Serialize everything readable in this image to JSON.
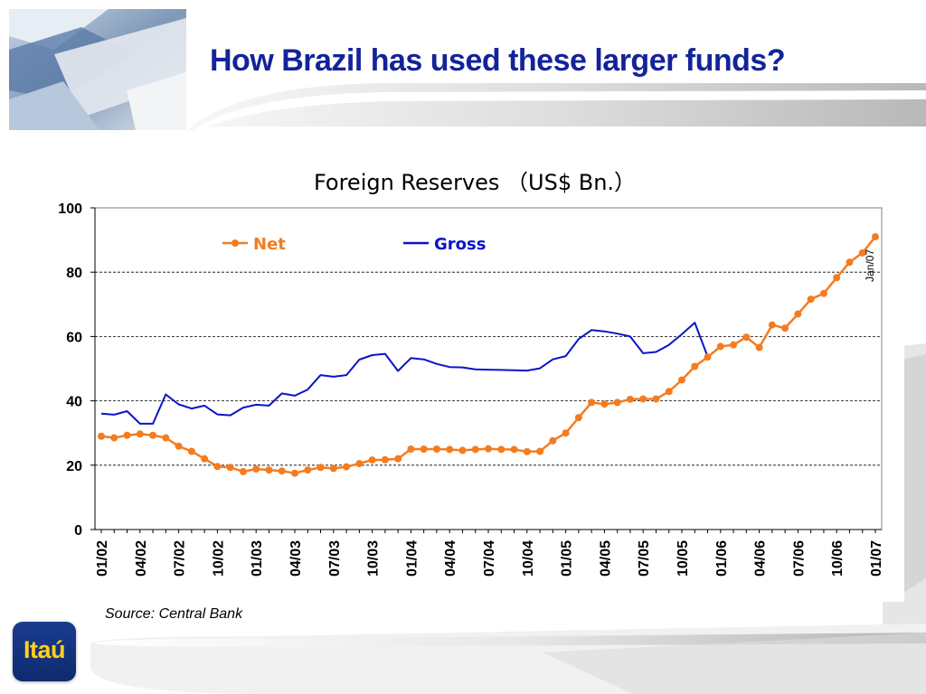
{
  "slide": {
    "title": "How Brazil has used these larger funds?",
    "source": "Source: Central Bank",
    "logo_text": "Itaú"
  },
  "colors": {
    "title": "#13239a",
    "net": "#f47c20",
    "gross": "#0a14c8",
    "grid": "#000000"
  },
  "chart_data": {
    "type": "line",
    "title": "Foreign Reserves （US$ Bn.）",
    "xlabel": "",
    "ylabel": "",
    "ylim": [
      0,
      100
    ],
    "yticks": [
      0,
      20,
      40,
      60,
      80,
      100
    ],
    "grid": "horizontal dashed at 20, 60, 80",
    "legend_position": "top inside",
    "x_start": "2002-01",
    "x_step": "month",
    "x_tick_labels": [
      "01/02",
      "04/02",
      "07/02",
      "10/02",
      "01/03",
      "04/03",
      "07/03",
      "10/03",
      "01/04",
      "04/04",
      "07/04",
      "10/04",
      "01/05",
      "04/05",
      "07/05",
      "10/05",
      "01/06",
      "04/06",
      "07/06",
      "10/06",
      "01/07"
    ],
    "annotation": "Jan/07",
    "series": [
      {
        "name": "Net",
        "marker": "circle",
        "x": [
          "2002-01",
          "2002-02",
          "2002-03",
          "2002-04",
          "2002-05",
          "2002-06",
          "2002-07",
          "2002-08",
          "2002-09",
          "2002-10",
          "2002-11",
          "2002-12",
          "2003-01",
          "2003-02",
          "2003-03",
          "2003-04",
          "2003-05",
          "2003-06",
          "2003-07",
          "2003-08",
          "2003-09",
          "2003-10",
          "2003-11",
          "2003-12",
          "2004-01",
          "2004-02",
          "2004-03",
          "2004-04",
          "2004-05",
          "2004-06",
          "2004-07",
          "2004-08",
          "2004-09",
          "2004-10",
          "2004-11",
          "2004-12",
          "2005-01",
          "2005-02",
          "2005-03",
          "2005-04",
          "2005-05",
          "2005-06",
          "2005-07",
          "2005-08",
          "2005-09",
          "2005-10",
          "2005-11",
          "2005-12",
          "2006-01",
          "2006-02",
          "2006-03",
          "2006-04",
          "2006-05",
          "2006-06",
          "2006-07",
          "2006-08",
          "2006-09",
          "2006-10",
          "2006-11",
          "2006-12",
          "2007-01"
        ],
        "values": [
          29,
          28.5,
          29.3,
          29.7,
          29.3,
          28.5,
          25.9,
          24.3,
          22,
          19.6,
          19.3,
          18,
          18.8,
          18.5,
          18.2,
          17.5,
          18.5,
          19.3,
          19,
          19.5,
          20.5,
          21.6,
          21.7,
          22,
          25,
          25,
          25,
          24.9,
          24.6,
          24.9,
          25.1,
          24.9,
          24.9,
          24.2,
          24.3,
          27.6,
          30,
          34.8,
          39.5,
          39,
          39.5,
          40.5,
          40.6,
          40.6,
          42.9,
          46.5,
          50.7,
          53.6,
          56.9,
          57.4,
          59.8,
          56.6,
          63.6,
          62.6,
          67,
          71.6,
          73.4,
          78.3,
          83.1,
          86,
          91
        ]
      },
      {
        "name": "Gross",
        "marker": "none",
        "x": [
          "2002-01",
          "2002-02",
          "2002-03",
          "2002-04",
          "2002-05",
          "2002-06",
          "2002-07",
          "2002-08",
          "2002-09",
          "2002-10",
          "2002-11",
          "2002-12",
          "2003-01",
          "2003-02",
          "2003-03",
          "2003-04",
          "2003-05",
          "2003-06",
          "2003-07",
          "2003-08",
          "2003-09",
          "2003-10",
          "2003-11",
          "2003-12",
          "2004-01",
          "2004-02",
          "2004-03",
          "2004-04",
          "2004-05",
          "2004-06",
          "2004-07",
          "2004-08",
          "2004-09",
          "2004-10",
          "2004-11",
          "2004-12",
          "2005-01",
          "2005-02",
          "2005-03",
          "2005-04",
          "2005-05",
          "2005-06",
          "2005-07",
          "2005-08",
          "2005-09",
          "2005-10",
          "2005-11",
          "2005-12"
        ],
        "values": [
          36,
          35.7,
          36.8,
          32.9,
          32.9,
          42,
          38.9,
          37.6,
          38.5,
          35.8,
          35.5,
          37.9,
          38.8,
          38.5,
          42.3,
          41.6,
          43.5,
          48,
          47.5,
          48,
          52.8,
          54.2,
          54.6,
          49.3,
          53.3,
          52.9,
          51.5,
          50.5,
          50.4,
          49.8,
          49.7,
          49.6,
          49.5,
          49.4,
          50.1,
          52.9,
          53.9,
          59.2,
          62,
          61.6,
          60.9,
          60,
          54.8,
          55.2,
          57.4,
          60.7,
          64.3,
          53.8
        ]
      }
    ]
  }
}
